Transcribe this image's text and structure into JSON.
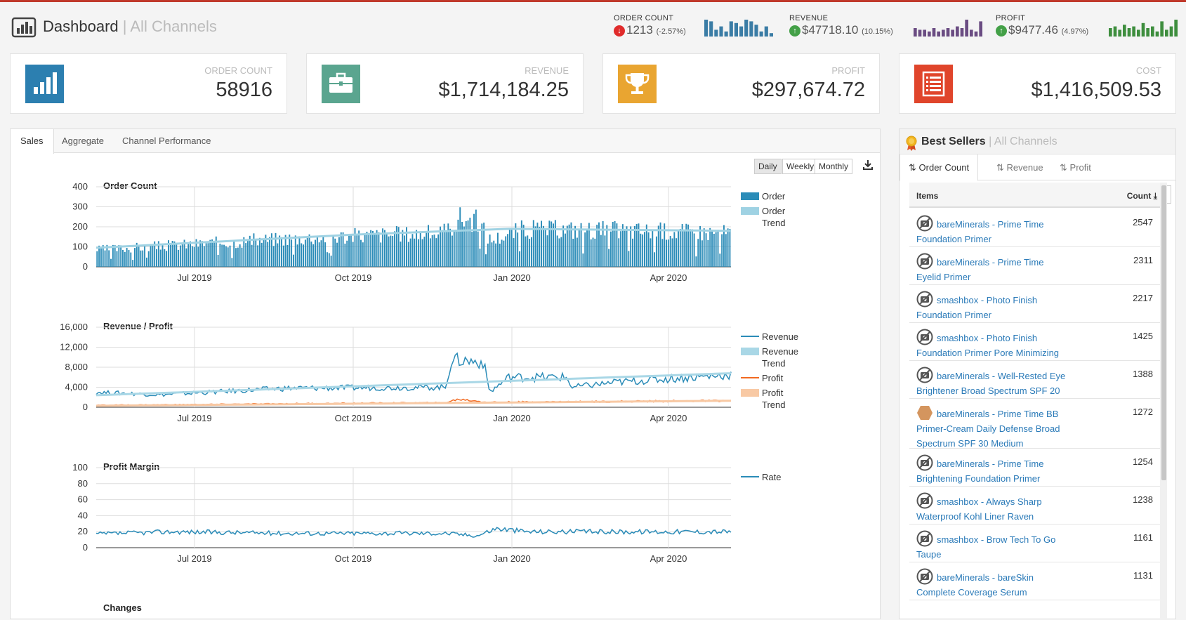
{
  "header": {
    "title": "Dashboard",
    "subtitle": "| All Channels",
    "metrics": [
      {
        "label": "ORDER COUNT",
        "value": "1213",
        "change": "(-2.57%)",
        "direction": "down",
        "spark_color": "#3a7ca5",
        "spark": [
          10,
          9,
          4,
          6,
          3,
          9,
          8,
          6,
          10,
          9,
          7,
          3,
          6,
          2
        ]
      },
      {
        "label": "REVENUE",
        "value": "$47718.10",
        "change": "(10.15%)",
        "direction": "up",
        "spark_color": "#6a4c82",
        "spark": [
          5,
          4,
          4,
          3,
          5,
          3,
          4,
          5,
          4,
          6,
          5,
          10,
          4,
          3,
          9
        ]
      },
      {
        "label": "PROFIT",
        "value": "$9477.46",
        "change": "(4.97%)",
        "direction": "up",
        "spark_color": "#3e8e3e",
        "spark": [
          5,
          6,
          4,
          7,
          5,
          6,
          4,
          8,
          5,
          6,
          3,
          9,
          4,
          6,
          10
        ]
      }
    ]
  },
  "kpis": [
    {
      "label": "ORDER COUNT",
      "value": "58916",
      "color": "#2c7fb0",
      "icon": "bar-chart-icon"
    },
    {
      "label": "REVENUE",
      "value": "$1,714,184.25",
      "color": "#5aa58f",
      "icon": "briefcase-icon"
    },
    {
      "label": "PROFIT",
      "value": "$297,674.72",
      "color": "#e9a531",
      "icon": "trophy-icon"
    },
    {
      "label": "COST",
      "value": "$1,416,509.53",
      "color": "#e0452b",
      "icon": "list-icon"
    }
  ],
  "tabs": {
    "sales": "Sales",
    "aggregate": "Aggregate",
    "channel": "Channel Performance"
  },
  "period": {
    "daily": "Daily",
    "weekly": "Weekly",
    "monthly": "Monthly",
    "selected": "Daily"
  },
  "chart_data": [
    {
      "type": "bar",
      "title": "Order Count",
      "x_ticks": [
        "Jul 2019",
        "Oct 2019",
        "Jan 2020",
        "Apr 2020"
      ],
      "y_ticks": [
        0,
        100,
        200,
        300,
        400
      ],
      "ylim": [
        0,
        400
      ],
      "series": [
        {
          "name": "Order",
          "color": "#2b8cb8",
          "profile": [
            [
              0,
              90
            ],
            [
              0.15,
              120
            ],
            [
              0.3,
              150
            ],
            [
              0.45,
              170
            ],
            [
              0.55,
              180
            ],
            [
              0.57,
              260
            ],
            [
              0.6,
              240
            ],
            [
              0.62,
              140
            ],
            [
              0.67,
              200
            ],
            [
              0.8,
              195
            ],
            [
              1.0,
              180
            ]
          ]
        },
        {
          "name": "Order Trend",
          "color": "#9fd2e3",
          "trend": [
            [
              0,
              95
            ],
            [
              0.4,
              160
            ],
            [
              0.65,
              190
            ],
            [
              1.0,
              180
            ]
          ]
        }
      ]
    },
    {
      "type": "line",
      "title": "Revenue / Profit",
      "x_ticks": [
        "Jul 2019",
        "Oct 2019",
        "Jan 2020",
        "Apr 2020"
      ],
      "y_ticks": [
        "0",
        "4,000",
        "8,000",
        "12,000",
        "16,000"
      ],
      "ylim": [
        0,
        16000
      ],
      "series": [
        {
          "name": "Revenue",
          "color": "#2b8cb8",
          "profile": [
            [
              0,
              3000
            ],
            [
              0.1,
              2500
            ],
            [
              0.3,
              3800
            ],
            [
              0.55,
              4000
            ],
            [
              0.56,
              9500
            ],
            [
              0.61,
              9000
            ],
            [
              0.62,
              3000
            ],
            [
              0.65,
              6000
            ],
            [
              0.74,
              6000
            ],
            [
              0.75,
              4000
            ],
            [
              0.82,
              5000
            ],
            [
              1.0,
              6500
            ]
          ]
        },
        {
          "name": "Revenue Trend",
          "color": "#a9d7e6",
          "trend": [
            [
              0,
              2400
            ],
            [
              1.0,
              6800
            ]
          ]
        },
        {
          "name": "Profit",
          "color": "#f26a21",
          "profile": [
            [
              0,
              400
            ],
            [
              0.3,
              700
            ],
            [
              0.55,
              900
            ],
            [
              0.57,
              1600
            ],
            [
              0.62,
              1000
            ],
            [
              1.0,
              1300
            ]
          ]
        },
        {
          "name": "Profit Trend",
          "color": "#f8c9a4",
          "trend": [
            [
              0,
              300
            ],
            [
              1.0,
              1300
            ]
          ]
        }
      ]
    },
    {
      "type": "line",
      "title": "Profit Margin",
      "x_ticks": [
        "Jul 2019",
        "Oct 2019",
        "Jan 2020",
        "Apr 2020"
      ],
      "y_ticks": [
        0,
        20,
        40,
        60,
        80,
        100
      ],
      "ylim": [
        0,
        100
      ],
      "series": [
        {
          "name": "Rate",
          "color": "#2b8cb8",
          "profile": [
            [
              0,
              17
            ],
            [
              0.12,
              20
            ],
            [
              0.3,
              18
            ],
            [
              0.55,
              18
            ],
            [
              0.6,
              15
            ],
            [
              0.63,
              24
            ],
            [
              0.68,
              20
            ],
            [
              1.0,
              20
            ]
          ]
        }
      ]
    }
  ],
  "changes_title": "Changes",
  "best_sellers": {
    "title": "Best Sellers",
    "subtitle": "| All Channels",
    "tabs": [
      "Order Count",
      "Revenue",
      "Profit"
    ],
    "page_size": "20",
    "col_items": "Items",
    "col_count": "Count",
    "items": [
      {
        "name_lines": [
          "bareMinerals - Prime Time",
          "Foundation Primer"
        ],
        "count": "2547",
        "thumb": "no-image"
      },
      {
        "name_lines": [
          "bareMinerals - Prime Time",
          "Eyelid Primer"
        ],
        "count": "2311",
        "thumb": "no-image"
      },
      {
        "name_lines": [
          "smashbox - Photo Finish",
          "Foundation Primer"
        ],
        "count": "2217",
        "thumb": "no-image"
      },
      {
        "name_lines": [
          "smashbox - Photo Finish",
          "Foundation Primer Pore Minimizing"
        ],
        "count": "1425",
        "thumb": "no-image"
      },
      {
        "name_lines": [
          "bareMinerals - Well-Rested Eye",
          "Brightener Broad Spectrum SPF 20"
        ],
        "count": "1388",
        "thumb": "no-image"
      },
      {
        "name_lines": [
          "bareMinerals - Prime Time BB",
          "Primer-Cream Daily Defense Broad",
          "Spectrum SPF 30 Medium"
        ],
        "count": "1272",
        "thumb": "swatch"
      },
      {
        "name_lines": [
          "bareMinerals - Prime Time",
          "Brightening Foundation Primer"
        ],
        "count": "1254",
        "thumb": "no-image"
      },
      {
        "name_lines": [
          "smashbox - Always Sharp",
          "Waterproof Kohl Liner Raven"
        ],
        "count": "1238",
        "thumb": "no-image"
      },
      {
        "name_lines": [
          "smashbox - Brow Tech To Go",
          "Taupe"
        ],
        "count": "1161",
        "thumb": "no-image"
      },
      {
        "name_lines": [
          "bareMinerals - bareSkin",
          "Complete Coverage Serum"
        ],
        "count": "1131",
        "thumb": "no-image"
      }
    ]
  }
}
